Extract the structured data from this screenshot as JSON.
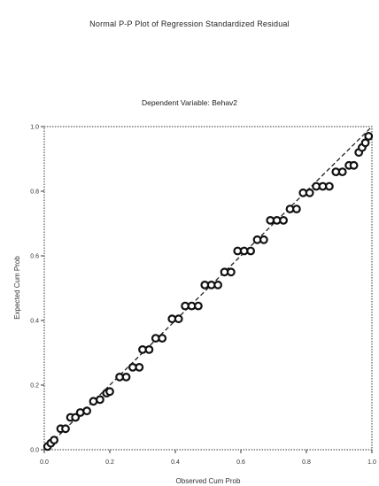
{
  "chart_data": {
    "type": "scatter",
    "title": "Normal P-P Plot of Regression Standardized Residual",
    "subtitle": "Dependent Variable: Behav2",
    "xlabel": "Observed Cum Prob",
    "ylabel": "Expected Cum Prob",
    "xlim": [
      0,
      1
    ],
    "ylim": [
      0,
      1
    ],
    "x_ticks": [
      "0.0",
      "0.2",
      "0.4",
      "0.6",
      "0.8",
      "1.0"
    ],
    "y_ticks": [
      "0.0",
      "0.2",
      "0.4",
      "0.6",
      "0.8",
      "1.0"
    ],
    "reference_line": [
      [
        0,
        0
      ],
      [
        1,
        1
      ]
    ],
    "grid": false,
    "points": [
      {
        "x": 0.01,
        "y": 0.01
      },
      {
        "x": 0.02,
        "y": 0.02
      },
      {
        "x": 0.03,
        "y": 0.03
      },
      {
        "x": 0.05,
        "y": 0.065
      },
      {
        "x": 0.065,
        "y": 0.065
      },
      {
        "x": 0.08,
        "y": 0.1
      },
      {
        "x": 0.095,
        "y": 0.1
      },
      {
        "x": 0.11,
        "y": 0.115
      },
      {
        "x": 0.13,
        "y": 0.12
      },
      {
        "x": 0.15,
        "y": 0.15
      },
      {
        "x": 0.17,
        "y": 0.155
      },
      {
        "x": 0.19,
        "y": 0.175
      },
      {
        "x": 0.2,
        "y": 0.18
      },
      {
        "x": 0.23,
        "y": 0.225
      },
      {
        "x": 0.25,
        "y": 0.225
      },
      {
        "x": 0.27,
        "y": 0.255
      },
      {
        "x": 0.29,
        "y": 0.255
      },
      {
        "x": 0.3,
        "y": 0.31
      },
      {
        "x": 0.32,
        "y": 0.31
      },
      {
        "x": 0.34,
        "y": 0.345
      },
      {
        "x": 0.36,
        "y": 0.345
      },
      {
        "x": 0.39,
        "y": 0.405
      },
      {
        "x": 0.41,
        "y": 0.405
      },
      {
        "x": 0.43,
        "y": 0.445
      },
      {
        "x": 0.45,
        "y": 0.445
      },
      {
        "x": 0.47,
        "y": 0.445
      },
      {
        "x": 0.49,
        "y": 0.51
      },
      {
        "x": 0.51,
        "y": 0.51
      },
      {
        "x": 0.53,
        "y": 0.51
      },
      {
        "x": 0.55,
        "y": 0.55
      },
      {
        "x": 0.57,
        "y": 0.55
      },
      {
        "x": 0.59,
        "y": 0.615
      },
      {
        "x": 0.61,
        "y": 0.615
      },
      {
        "x": 0.63,
        "y": 0.615
      },
      {
        "x": 0.65,
        "y": 0.65
      },
      {
        "x": 0.67,
        "y": 0.65
      },
      {
        "x": 0.69,
        "y": 0.71
      },
      {
        "x": 0.71,
        "y": 0.71
      },
      {
        "x": 0.73,
        "y": 0.71
      },
      {
        "x": 0.75,
        "y": 0.745
      },
      {
        "x": 0.77,
        "y": 0.745
      },
      {
        "x": 0.79,
        "y": 0.795
      },
      {
        "x": 0.81,
        "y": 0.795
      },
      {
        "x": 0.83,
        "y": 0.815
      },
      {
        "x": 0.85,
        "y": 0.815
      },
      {
        "x": 0.87,
        "y": 0.815
      },
      {
        "x": 0.89,
        "y": 0.86
      },
      {
        "x": 0.91,
        "y": 0.86
      },
      {
        "x": 0.93,
        "y": 0.88
      },
      {
        "x": 0.945,
        "y": 0.88
      },
      {
        "x": 0.96,
        "y": 0.92
      },
      {
        "x": 0.97,
        "y": 0.935
      },
      {
        "x": 0.98,
        "y": 0.95
      },
      {
        "x": 0.99,
        "y": 0.97
      }
    ]
  }
}
